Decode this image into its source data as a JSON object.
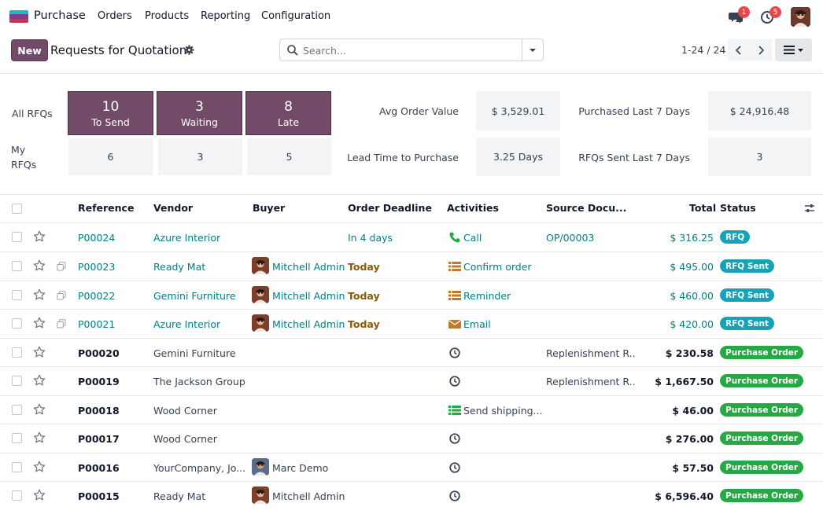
{
  "app": {
    "name": "Purchase",
    "menu": [
      "Orders",
      "Products",
      "Reporting",
      "Configuration"
    ],
    "messages_count": "1",
    "activities_count": "5",
    "colors": {
      "brand": "#714b67",
      "link": "#017e84",
      "rfq_badge": "#17a2b8",
      "po_badge": "#28a745"
    }
  },
  "control": {
    "new_label": "New",
    "title": "Requests for Quotation",
    "search_placeholder": "Search...",
    "pager": "1-24 / 24"
  },
  "dashboard": {
    "all_rfqs_label": "All RFQs",
    "my_rfqs_label": "My RFQs",
    "tiles": [
      {
        "value": "10",
        "label": "To Send",
        "mine": "6"
      },
      {
        "value": "3",
        "label": "Waiting",
        "mine": "3"
      },
      {
        "value": "8",
        "label": "Late",
        "mine": "5"
      }
    ],
    "kpis": [
      {
        "label": "Avg Order Value",
        "value": "$ 3,529.01"
      },
      {
        "label": "Purchased Last 7 Days",
        "value": "$ 24,916.48"
      },
      {
        "label": "Lead Time to Purchase",
        "value": "3.25 Days"
      },
      {
        "label": "RFQs Sent Last 7 Days",
        "value": "3"
      }
    ]
  },
  "table": {
    "headers": {
      "reference": "Reference",
      "vendor": "Vendor",
      "buyer": "Buyer",
      "deadline": "Order Deadline",
      "activities": "Activities",
      "source": "Source Docu...",
      "total": "Total",
      "status": "Status"
    },
    "rows": [
      {
        "ref": "P00024",
        "vendor": "Azure Interior",
        "buyer": "",
        "deadline": "In 4 days",
        "activity": "Call",
        "activity_icon": "phone-icon",
        "source": "OP/00003",
        "total": "$ 316.25",
        "status": "RFQ",
        "kind": "rfq"
      },
      {
        "ref": "P00023",
        "vendor": "Ready Mat",
        "buyer": "Mitchell Admin",
        "deadline": "Today",
        "activity": "Confirm order",
        "activity_icon": "list-icon",
        "source": "",
        "total": "$ 495.00",
        "status": "RFQ Sent",
        "kind": "rfq"
      },
      {
        "ref": "P00022",
        "vendor": "Gemini Furniture",
        "buyer": "Mitchell Admin",
        "deadline": "Today",
        "activity": "Reminder",
        "activity_icon": "list-icon",
        "source": "",
        "total": "$ 460.00",
        "status": "RFQ Sent",
        "kind": "rfq"
      },
      {
        "ref": "P00021",
        "vendor": "Azure Interior",
        "buyer": "Mitchell Admin",
        "deadline": "Today",
        "activity": "Email",
        "activity_icon": "envelope-icon",
        "source": "",
        "total": "$ 420.00",
        "status": "RFQ Sent",
        "kind": "rfq"
      },
      {
        "ref": "P00020",
        "vendor": "Gemini Furniture",
        "buyer": "",
        "deadline": "",
        "activity": "",
        "activity_icon": "clock-icon",
        "source": "Replenishment R...",
        "total": "$ 230.58",
        "status": "Purchase Order",
        "kind": "po"
      },
      {
        "ref": "P00019",
        "vendor": "The Jackson Group",
        "buyer": "",
        "deadline": "",
        "activity": "",
        "activity_icon": "clock-icon",
        "source": "Replenishment R...",
        "total": "$ 1,667.50",
        "status": "Purchase Order",
        "kind": "po"
      },
      {
        "ref": "P00018",
        "vendor": "Wood Corner",
        "buyer": "",
        "deadline": "",
        "activity": "Send shipping...",
        "activity_icon": "green-list-icon",
        "source": "",
        "total": "$ 46.00",
        "status": "Purchase Order",
        "kind": "po"
      },
      {
        "ref": "P00017",
        "vendor": "Wood Corner",
        "buyer": "",
        "deadline": "",
        "activity": "",
        "activity_icon": "clock-icon",
        "source": "",
        "total": "$ 276.00",
        "status": "Purchase Order",
        "kind": "po"
      },
      {
        "ref": "P00016",
        "vendor": "YourCompany, Jo...",
        "buyer": "Marc Demo",
        "deadline": "",
        "activity": "",
        "activity_icon": "clock-icon",
        "source": "",
        "total": "$ 57.50",
        "status": "Purchase Order",
        "kind": "po"
      },
      {
        "ref": "P00015",
        "vendor": "Ready Mat",
        "buyer": "Mitchell Admin",
        "deadline": "",
        "activity": "",
        "activity_icon": "clock-icon",
        "source": "",
        "total": "$ 6,596.40",
        "status": "Purchase Order",
        "kind": "po"
      }
    ]
  }
}
